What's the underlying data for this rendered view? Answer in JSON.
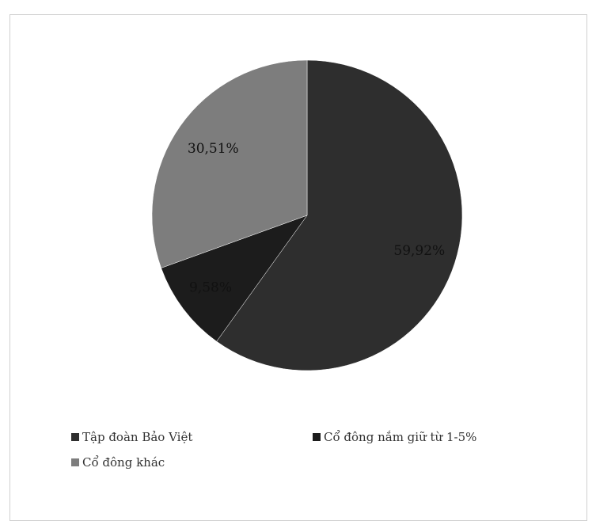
{
  "chart_data": {
    "type": "pie",
    "title": "",
    "slices": [
      {
        "label": "Tập đoàn Bảo Việt",
        "value": 59.92,
        "display": "59,92%",
        "color": "#2e2e2e"
      },
      {
        "label": "Cổ đông nắm giữ từ 1-5%",
        "value": 9.58,
        "display": "9,58%",
        "color": "#1c1c1c"
      },
      {
        "label": "Cổ đông khác",
        "value": 30.51,
        "display": "30,51%",
        "color": "#7d7d7d"
      }
    ],
    "legend": {
      "placement": "bottom"
    }
  }
}
